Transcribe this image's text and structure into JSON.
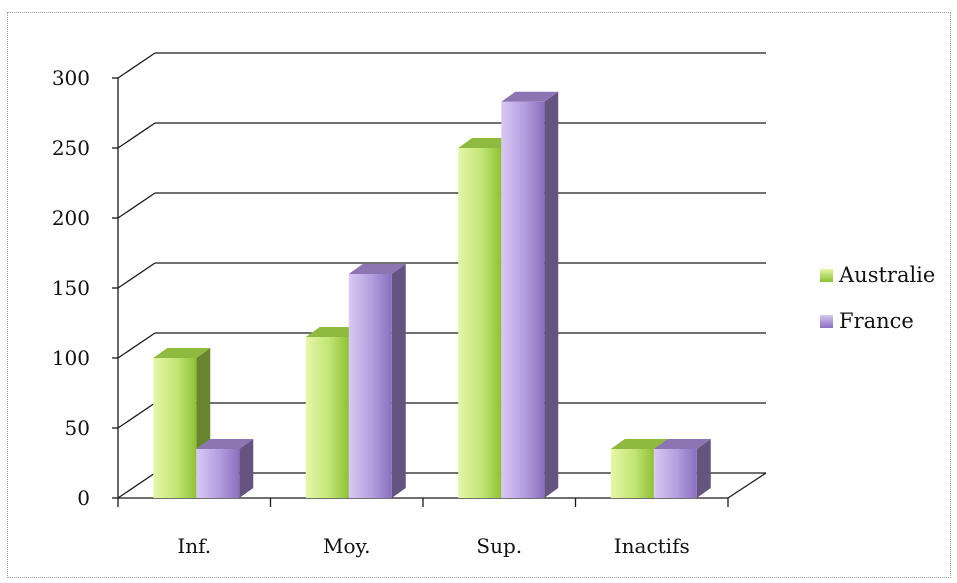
{
  "chart_data": {
    "type": "bar",
    "categories": [
      "Inf.",
      "Moy.",
      "Sup.",
      "Inactifs"
    ],
    "series": [
      {
        "name": "Australie",
        "values": [
          100,
          115,
          250,
          35
        ],
        "color": "#a6d84a"
      },
      {
        "name": "France",
        "values": [
          35,
          160,
          283,
          35
        ],
        "color": "#a487cf"
      }
    ],
    "ylim": [
      0,
      300
    ],
    "yticks": [
      0,
      50,
      100,
      150,
      200,
      250,
      300
    ],
    "grid": true,
    "legend": "right",
    "style": "3d"
  }
}
